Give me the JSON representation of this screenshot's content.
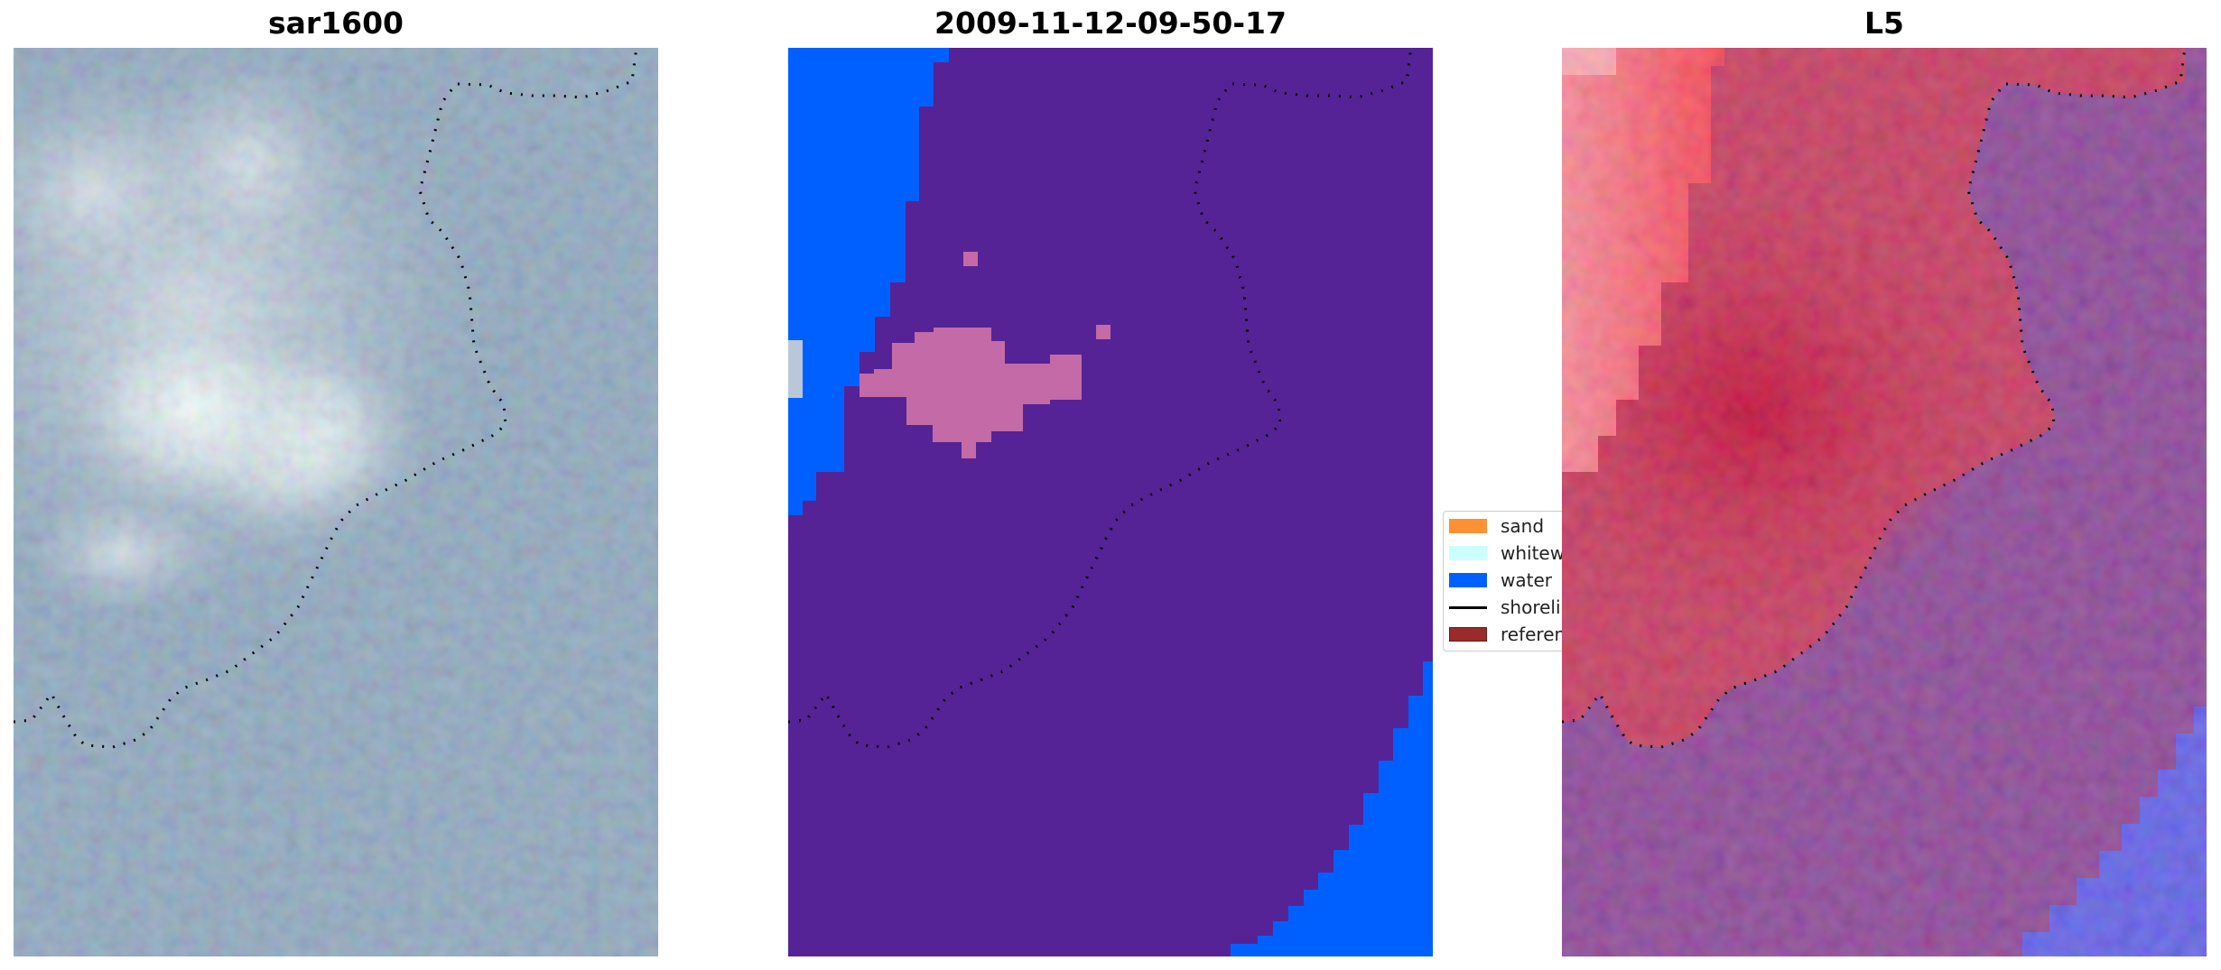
{
  "panels": [
    {
      "title": "sar1600"
    },
    {
      "title": "2009-11-12-09-50-17"
    },
    {
      "title": "L5"
    }
  ],
  "legend": {
    "items": [
      {
        "label": "sand",
        "color": "#ff9033",
        "kind": "patch"
      },
      {
        "label": "whitewater",
        "color": "#ccffff",
        "kind": "patch"
      },
      {
        "label": "water",
        "color": "#0060ff",
        "kind": "patch"
      },
      {
        "label": "shoreline",
        "color": "#000000",
        "kind": "line"
      },
      {
        "label": "reference",
        "color": "#9a2b2b",
        "kind": "patch"
      }
    ]
  },
  "colors": {
    "classified_water": "#0060ff",
    "classified_land": "#552395",
    "classified_sand_blob": "#c46aa6",
    "classified_whitewater": "#b9c7d8",
    "shoreline": "#000000"
  }
}
